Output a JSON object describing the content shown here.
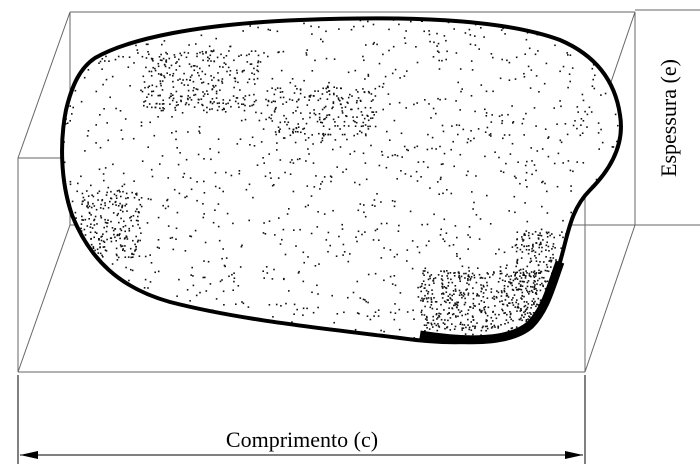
{
  "labels": {
    "thickness": "Espessura (e)",
    "length": "Comprimento (c)"
  }
}
